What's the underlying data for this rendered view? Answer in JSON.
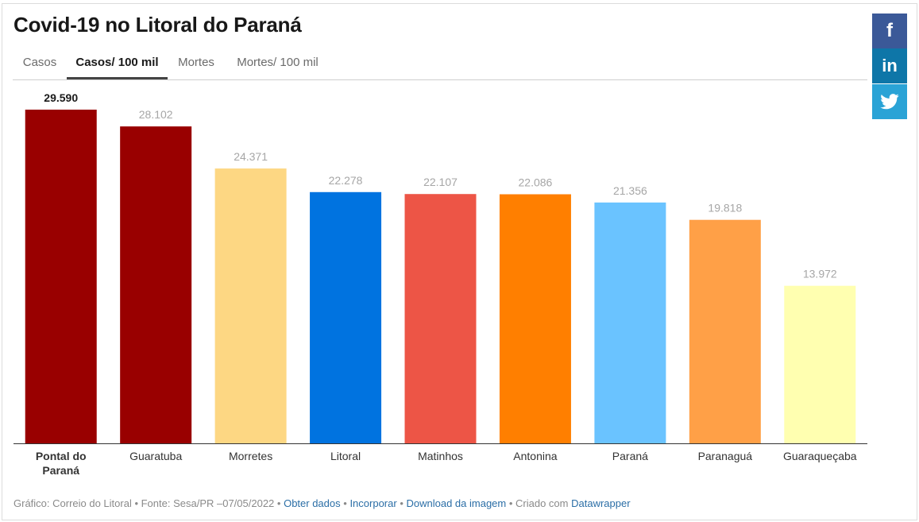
{
  "title": "Covid-19 no Litoral do Paraná",
  "tabs": [
    {
      "label": "Casos"
    },
    {
      "label": "Casos/ 100 mil"
    },
    {
      "label": "Mortes"
    },
    {
      "label": "Mortes/ 100 mil"
    }
  ],
  "active_tab": 1,
  "share": {
    "facebook": "f",
    "linkedin": "in",
    "twitter": "twitter-icon"
  },
  "chart_data": {
    "type": "bar",
    "categories": [
      "Pontal do Paraná",
      "Guaratuba",
      "Morretes",
      "Litoral",
      "Matinhos",
      "Antonina",
      "Paraná",
      "Paranaguá",
      "Guaraqueçaba"
    ],
    "values": [
      29590,
      28102,
      24371,
      22278,
      22107,
      22086,
      21356,
      19818,
      13972
    ],
    "value_labels": [
      "29.590",
      "28.102",
      "24.371",
      "22.278",
      "22.107",
      "22.086",
      "21.356",
      "19.818",
      "13.972"
    ],
    "colors": [
      "#990000",
      "#990000",
      "#fdd783",
      "#0073e0",
      "#ed5546",
      "#ff7f00",
      "#6ac3ff",
      "#ffa047",
      "#ffffb0"
    ],
    "highlighted_index": 0,
    "ylim": [
      0,
      29590
    ],
    "grid": false
  },
  "footer": {
    "credit": "Gráfico: Correio do Litoral • Fonte: Sesa/PR –07/05/2022 •",
    "get_data": "Obter dados",
    "embed": "Incorporar",
    "download": "Download da imagem",
    "created_with": "• Criado com",
    "datawrapper": "Datawrapper"
  }
}
